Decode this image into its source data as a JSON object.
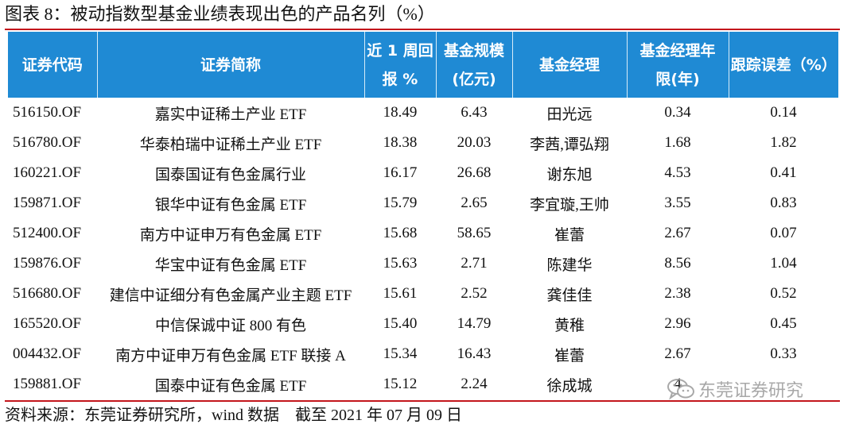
{
  "title": "图表 8：被动指数型基金业绩表现出色的产品名列（%）",
  "table": {
    "headers": [
      {
        "line1": "证券代码",
        "line2": ""
      },
      {
        "line1": "证券简称",
        "line2": ""
      },
      {
        "line1": "近 1 周回",
        "line2": "报 %"
      },
      {
        "line1": "基金规模",
        "line2": "(亿元)"
      },
      {
        "line1": "基金经理",
        "line2": ""
      },
      {
        "line1": "基金经理年",
        "line2": "限(年)"
      },
      {
        "line1": "跟踪误差（%）",
        "line2": ""
      }
    ],
    "rows": [
      [
        "516150.OF",
        "嘉实中证稀土产业 ETF",
        "18.49",
        "6.43",
        "田光远",
        "0.34",
        "0.14"
      ],
      [
        "516780.OF",
        "华泰柏瑞中证稀土产业 ETF",
        "18.38",
        "20.03",
        "李茜,谭弘翔",
        "1.68",
        "1.82"
      ],
      [
        "160221.OF",
        "国泰国证有色金属行业",
        "16.17",
        "26.68",
        "谢东旭",
        "4.53",
        "0.41"
      ],
      [
        "159871.OF",
        "银华中证有色金属 ETF",
        "15.79",
        "2.65",
        "李宜璇,王帅",
        "3.55",
        "0.83"
      ],
      [
        "512400.OF",
        "南方中证申万有色金属 ETF",
        "15.68",
        "58.65",
        "崔蕾",
        "2.67",
        "0.07"
      ],
      [
        "159876.OF",
        "华宝中证有色金属 ETF",
        "15.63",
        "2.71",
        "陈建华",
        "8.56",
        "1.04"
      ],
      [
        "516680.OF",
        "建信中证细分有色金属产业主题 ETF",
        "15.61",
        "2.52",
        "龚佳佳",
        "2.38",
        "0.52"
      ],
      [
        "165520.OF",
        "中信保诚中证 800 有色",
        "15.40",
        "14.79",
        "黄稚",
        "2.96",
        "0.45"
      ],
      [
        "004432.OF",
        "南方中证申万有色金属 ETF 联接 A",
        "15.34",
        "16.43",
        "崔蕾",
        "2.67",
        "0.33"
      ],
      [
        "159881.OF",
        "国泰中证有色金属 ETF",
        "15.12",
        "2.24",
        "徐成城",
        "4",
        ""
      ]
    ]
  },
  "watermark": "东莞证券研究",
  "source": "资料来源：东莞证券研究所，wind 数据    截至 2021 年 07 月 09 日",
  "colors": {
    "header_bg": "#1f8ad4",
    "rule": "#c3161c"
  }
}
